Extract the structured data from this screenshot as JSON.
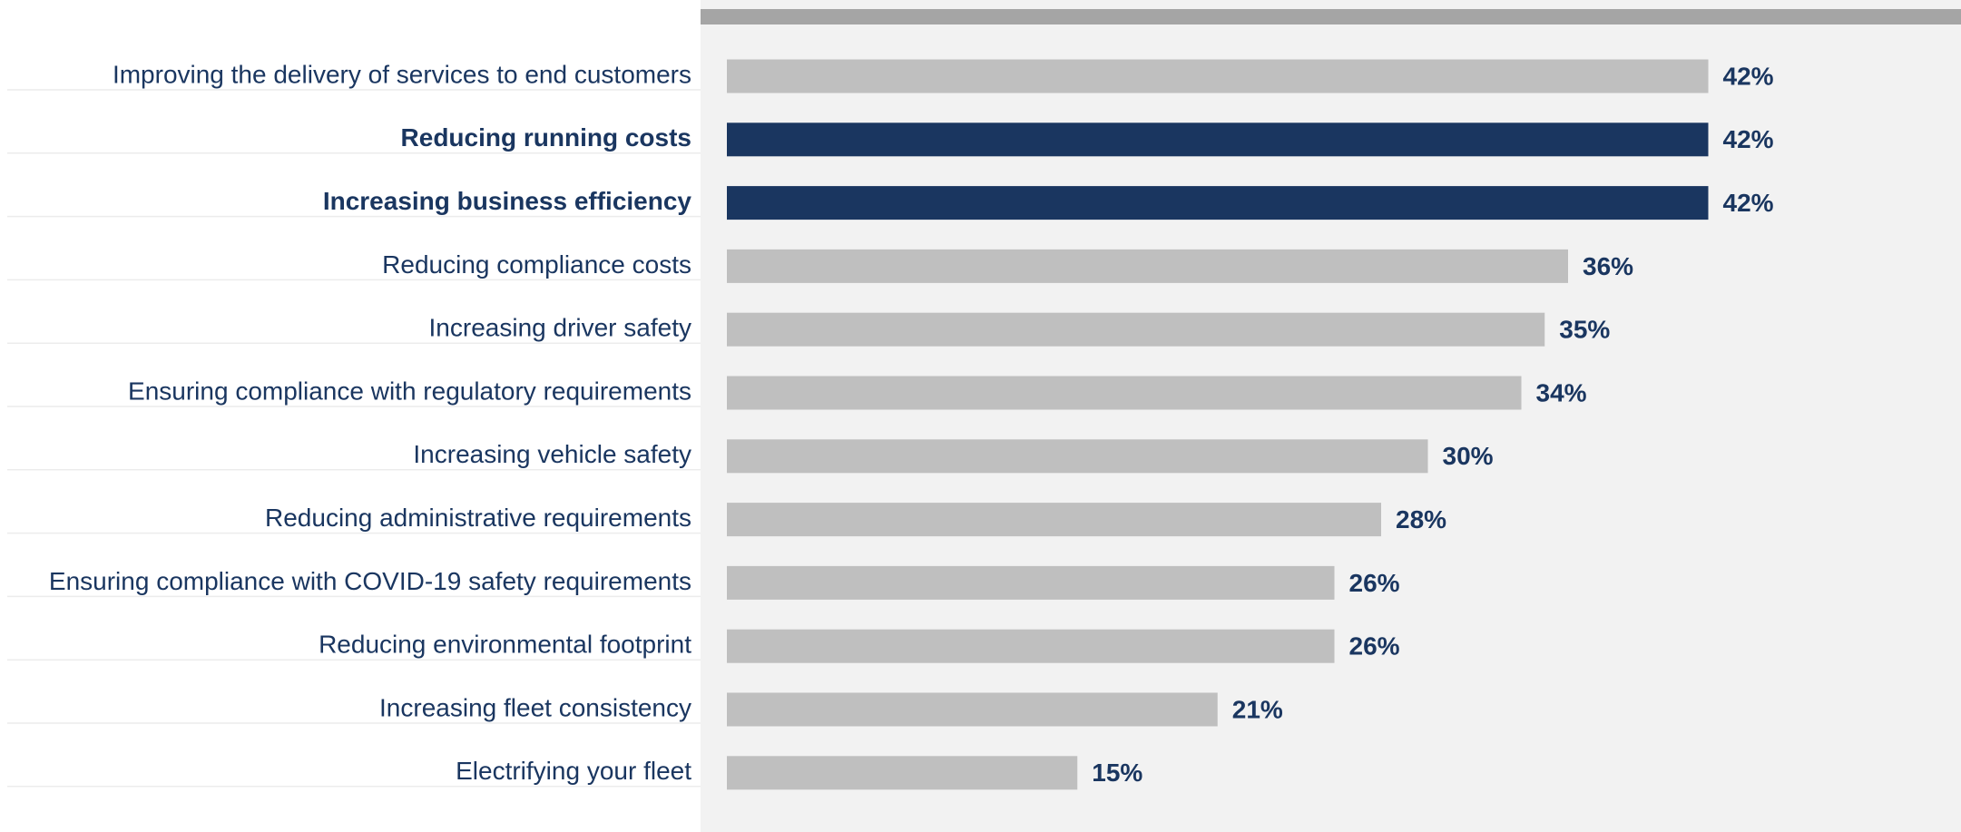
{
  "chart_data": {
    "type": "bar",
    "orientation": "horizontal",
    "categories": [
      "Improving the delivery of services to end customers",
      "Reducing running costs",
      "Increasing business efficiency",
      "Reducing compliance costs",
      "Increasing driver safety",
      "Ensuring compliance with regulatory requirements",
      "Increasing vehicle safety",
      "Reducing administrative requirements",
      "Ensuring compliance with COVID-19 safety requirements",
      "Reducing environmental footprint",
      "Increasing fleet consistency",
      "Electrifying your fleet"
    ],
    "values": [
      42,
      42,
      42,
      36,
      35,
      34,
      30,
      28,
      26,
      26,
      21,
      15
    ],
    "value_labels": [
      "42%",
      "42%",
      "42%",
      "36%",
      "35%",
      "34%",
      "30%",
      "28%",
      "26%",
      "26%",
      "21%",
      "15%"
    ],
    "highlighted": [
      "Reducing running costs",
      "Increasing business efficiency"
    ],
    "title": "",
    "xlabel": "",
    "ylabel": "",
    "xlim": [
      0,
      52
    ],
    "grid": false,
    "legend": "none",
    "colors": {
      "bar_default": "#bfbfbf",
      "bar_highlight": "#1a3660",
      "text": "#1a3660",
      "plot_background": "#f2f2f2",
      "top_band": "#a5a5a5",
      "row_rule": "#ececec"
    }
  }
}
